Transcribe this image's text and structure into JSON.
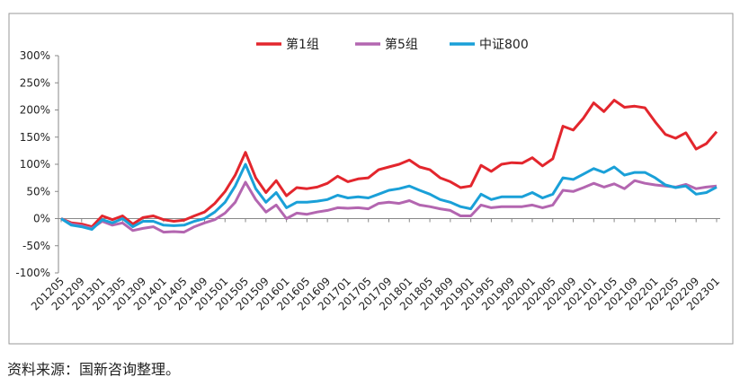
{
  "chart_data": {
    "type": "line",
    "categories": [
      "201205",
      null,
      "201209",
      null,
      "201301",
      null,
      "201305",
      null,
      "201309",
      null,
      "201401",
      null,
      "201405",
      null,
      "201409",
      null,
      "201501",
      null,
      "201505",
      null,
      "201509",
      null,
      "201601",
      null,
      "201605",
      null,
      "201609",
      null,
      "201701",
      null,
      "201705",
      null,
      "201709",
      null,
      "201801",
      null,
      "201805",
      null,
      "201809",
      null,
      "201901",
      null,
      "201905",
      null,
      "201909",
      null,
      "202001",
      null,
      "202005",
      null,
      "202009",
      null,
      "202101",
      null,
      "202105",
      null,
      "202109",
      null,
      "202201",
      null,
      "202205",
      null,
      "202209",
      null,
      "202301"
    ],
    "series": [
      {
        "name": "第1组",
        "color": "#e3262d",
        "values": [
          0,
          -8,
          -10,
          -15,
          5,
          -2,
          5,
          -10,
          2,
          5,
          -2,
          -5,
          -3,
          5,
          12,
          28,
          50,
          80,
          122,
          75,
          48,
          70,
          42,
          57,
          55,
          58,
          65,
          78,
          68,
          73,
          75,
          90,
          95,
          100,
          108,
          95,
          90,
          75,
          68,
          57,
          60,
          98,
          87,
          100,
          103,
          102,
          112,
          97,
          110,
          170,
          163,
          185,
          213,
          197,
          218,
          205,
          207,
          204,
          178,
          155,
          148,
          158,
          128,
          138,
          160
        ]
      },
      {
        "name": "第5组",
        "color": "#b366b0",
        "values": [
          0,
          -10,
          -13,
          -18,
          -5,
          -12,
          -8,
          -22,
          -18,
          -15,
          -25,
          -24,
          -25,
          -15,
          -8,
          -2,
          10,
          30,
          67,
          35,
          12,
          25,
          0,
          10,
          8,
          12,
          15,
          20,
          19,
          20,
          18,
          28,
          30,
          28,
          33,
          25,
          22,
          18,
          15,
          5,
          5,
          25,
          20,
          22,
          22,
          22,
          25,
          20,
          25,
          52,
          50,
          57,
          65,
          58,
          64,
          55,
          70,
          65,
          62,
          60,
          58,
          63,
          55,
          58,
          60
        ]
      },
      {
        "name": "中证800",
        "color": "#1aa0d8",
        "values": [
          0,
          -12,
          -15,
          -20,
          -2,
          -8,
          0,
          -15,
          -5,
          -5,
          -12,
          -13,
          -12,
          -5,
          0,
          12,
          30,
          60,
          100,
          55,
          30,
          48,
          20,
          30,
          30,
          32,
          35,
          43,
          38,
          40,
          38,
          45,
          52,
          55,
          60,
          52,
          45,
          35,
          30,
          22,
          18,
          45,
          35,
          40,
          40,
          40,
          48,
          38,
          45,
          75,
          72,
          82,
          92,
          85,
          95,
          80,
          85,
          85,
          75,
          62,
          57,
          60,
          45,
          48,
          58
        ]
      }
    ],
    "ylim": [
      -100,
      300
    ],
    "yticks": [
      {
        "value": -100,
        "label": "-100%"
      },
      {
        "value": -50,
        "label": "-50%"
      },
      {
        "value": 0,
        "label": "0%"
      },
      {
        "value": 50,
        "label": "50%"
      },
      {
        "value": 100,
        "label": "100%"
      },
      {
        "value": 150,
        "label": "150%"
      },
      {
        "value": 200,
        "label": "200%"
      },
      {
        "value": 250,
        "label": "250%"
      },
      {
        "value": 300,
        "label": "300%"
      }
    ],
    "legend": "top",
    "grid": false
  },
  "source": "资料来源：国新咨询整理。"
}
